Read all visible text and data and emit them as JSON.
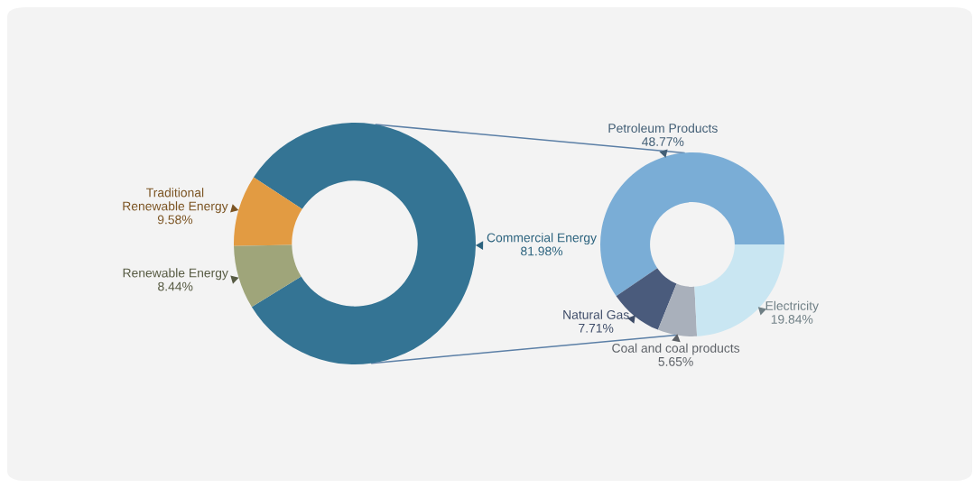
{
  "chart_data": [
    {
      "type": "donut",
      "categories": [
        "Commercial Energy",
        "Traditional\nRenewable Energy",
        "Renewable Energy"
      ],
      "values": [
        81.98,
        9.58,
        8.44
      ],
      "value_labels": [
        "81.98%",
        "9.58%",
        "8.44%"
      ],
      "colors": [
        "#347494",
        "#e29b42",
        "#9fa57a"
      ],
      "legend": false
    },
    {
      "type": "donut",
      "categories": [
        "Petroleum Products",
        "Natural Gas",
        "Coal and coal products",
        "Electricity"
      ],
      "values": [
        48.77,
        7.71,
        5.65,
        19.84
      ],
      "value_labels": [
        "48.77%",
        "7.71%",
        "5.65%",
        "19.84%"
      ],
      "colors": [
        "#7aadd6",
        "#4a5b7c",
        "#a9b0bb",
        "#c9e6f2"
      ],
      "legend": false
    }
  ]
}
